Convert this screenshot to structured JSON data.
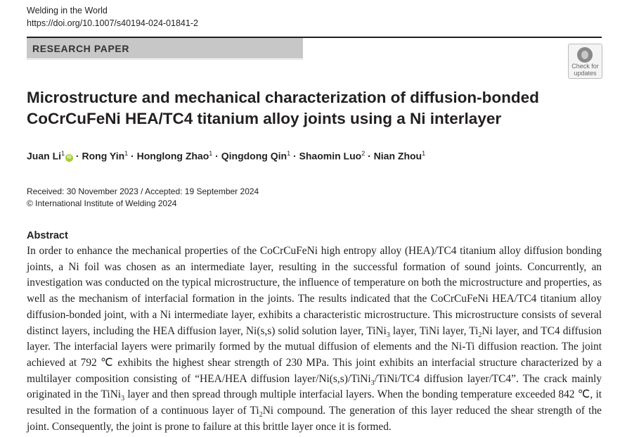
{
  "journal": {
    "name": "Welding in the World",
    "doi": "https://doi.org/10.1007/s40194-024-01841-2"
  },
  "banner": "RESEARCH PAPER",
  "check_updates": {
    "line1": "Check for",
    "line2": "updates"
  },
  "title": "Microstructure and mechanical characterization of diffusion-bonded CoCrCuFeNi HEA/TC4 titanium alloy joints using a Ni interlayer",
  "authors": [
    {
      "name": "Juan Li",
      "aff": "1",
      "orcid": "iD"
    },
    {
      "name": "Rong Yin",
      "aff": "1"
    },
    {
      "name": "Honglong Zhao",
      "aff": "1"
    },
    {
      "name": "Qingdong Qin",
      "aff": "1"
    },
    {
      "name": "Shaomin Luo",
      "aff": "2"
    },
    {
      "name": "Nian Zhou",
      "aff": "1"
    }
  ],
  "dates": "Received: 30 November 2023 / Accepted: 19 September 2024",
  "copyright": "© International Institute of Welding 2024",
  "abstract": {
    "heading": "Abstract",
    "segments": [
      {
        "t": "In order to enhance the mechanical properties of the CoCrCuFeNi high entropy alloy (HEA)/TC4 titanium alloy diffusion bonding joints, a Ni foil was chosen as an intermediate layer, resulting in the successful formation of sound joints. Concurrently, an investigation was conducted on the typical microstructure, the influence of temperature on both the microstructure and properties, as well as the mechanism of interfacial formation in the joints. The results indicated that the CoCrCuFeNi HEA/TC4 titanium alloy diffusion-bonded joint, with a Ni intermediate layer, exhibits a characteristic microstructure. This microstructure consists of several distinct layers, including the HEA diffusion layer, Ni(s,s) solid solution layer, TiNi"
      },
      {
        "t": "3",
        "sub": true
      },
      {
        "t": " layer, TiNi layer, Ti"
      },
      {
        "t": "2",
        "sub": true
      },
      {
        "t": "Ni layer, and TC4 diffusion layer. The interfacial layers were primarily formed by the mutual diffusion of elements and the Ni-Ti diffusion reaction. The joint achieved at 792 ℃ exhibits the highest shear strength of 230 MPa. This joint exhibits an interfacial structure characterized by a multilayer composition consisting of “HEA/HEA diffusion layer/Ni(s,s)/TiNi"
      },
      {
        "t": "3",
        "sub": true
      },
      {
        "t": "/TiNi/TC4 diffusion layer/TC4”. The crack mainly originated in the TiNi"
      },
      {
        "t": "3",
        "sub": true
      },
      {
        "t": " layer and then spread through multiple interfacial layers. When the bonding temperature exceeded 842 ℃, it resulted in the formation of a continuous layer of Ti"
      },
      {
        "t": "2",
        "sub": true
      },
      {
        "t": "Ni compound. The generation of this layer reduced the shear strength of the joint. Consequently, the joint is prone to failure at this brittle layer once it is formed."
      }
    ]
  }
}
